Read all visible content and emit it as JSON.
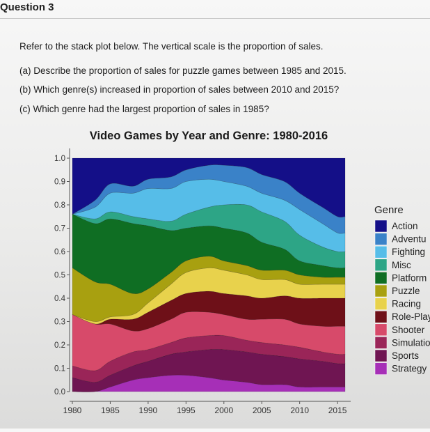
{
  "question": {
    "title": "Question 3",
    "lines": [
      "Refer to the stack plot below. The vertical scale is the proportion of sales.",
      "(a) Describe the proportion of sales for puzzle games between 1985 and 2015.",
      "(b) Which genre(s) increased in proportion of sales between 2010 and 2015?",
      "(c) Which genre had the largest proportion of sales in 1985?"
    ]
  },
  "chart_data": {
    "type": "area",
    "title": "Video Games by Year and Genre: 1980-2016",
    "xlabel": "",
    "ylabel": "",
    "x": [
      1980,
      1983,
      1985,
      1988,
      1990,
      1993,
      1995,
      1998,
      2000,
      2003,
      2005,
      2008,
      2010,
      2013,
      2015,
      2016
    ],
    "xticks": [
      "1980",
      "1985",
      "1990",
      "1995",
      "2000",
      "2005",
      "2010",
      "2015"
    ],
    "xlim": [
      1980,
      2016
    ],
    "yticks": [
      "0.0",
      "0.1",
      "0.2",
      "0.3",
      "0.4",
      "0.5",
      "0.6",
      "0.7",
      "0.8",
      "0.9",
      "1.0"
    ],
    "ylim": [
      0,
      1
    ],
    "legend_title": "Genre",
    "legend_position": "right",
    "series": [
      {
        "name": "Strategy",
        "color": "#a62fb7",
        "values": [
          0.0,
          0.0,
          0.02,
          0.05,
          0.06,
          0.07,
          0.07,
          0.06,
          0.05,
          0.04,
          0.03,
          0.03,
          0.02,
          0.02,
          0.02,
          0.02
        ]
      },
      {
        "name": "Sports",
        "color": "#6f1552",
        "values": [
          0.06,
          0.04,
          0.05,
          0.06,
          0.07,
          0.09,
          0.1,
          0.12,
          0.13,
          0.13,
          0.13,
          0.12,
          0.12,
          0.11,
          0.1,
          0.1
        ]
      },
      {
        "name": "Simulation",
        "color": "#9a2558",
        "values": [
          0.05,
          0.05,
          0.06,
          0.06,
          0.05,
          0.05,
          0.06,
          0.06,
          0.06,
          0.05,
          0.05,
          0.05,
          0.05,
          0.04,
          0.04,
          0.04
        ]
      },
      {
        "name": "Shooter",
        "color": "#d74a6a",
        "values": [
          0.22,
          0.2,
          0.16,
          0.09,
          0.09,
          0.1,
          0.11,
          0.1,
          0.09,
          0.09,
          0.1,
          0.11,
          0.1,
          0.11,
          0.12,
          0.12
        ]
      },
      {
        "name": "Role-Play",
        "color": "#6e1018",
        "values": [
          0.0,
          0.0,
          0.02,
          0.05,
          0.07,
          0.08,
          0.08,
          0.09,
          0.09,
          0.1,
          0.09,
          0.1,
          0.11,
          0.12,
          0.12,
          0.12
        ]
      },
      {
        "name": "Racing",
        "color": "#e8d24c",
        "values": [
          0.0,
          0.01,
          0.01,
          0.02,
          0.04,
          0.07,
          0.09,
          0.1,
          0.1,
          0.09,
          0.08,
          0.07,
          0.06,
          0.06,
          0.06,
          0.06
        ]
      },
      {
        "name": "Puzzle",
        "color": "#a8a010",
        "values": [
          0.2,
          0.17,
          0.14,
          0.09,
          0.06,
          0.05,
          0.05,
          0.05,
          0.04,
          0.04,
          0.04,
          0.04,
          0.04,
          0.03,
          0.03,
          0.03
        ]
      },
      {
        "name": "Platform",
        "color": "#0f6e23",
        "values": [
          0.23,
          0.25,
          0.28,
          0.3,
          0.27,
          0.18,
          0.14,
          0.13,
          0.14,
          0.14,
          0.12,
          0.09,
          0.06,
          0.05,
          0.04,
          0.04
        ]
      },
      {
        "name": "Misc",
        "color": "#2da586",
        "values": [
          0.0,
          0.02,
          0.03,
          0.03,
          0.03,
          0.04,
          0.06,
          0.08,
          0.1,
          0.12,
          0.13,
          0.12,
          0.11,
          0.08,
          0.07,
          0.07
        ]
      },
      {
        "name": "Fighting",
        "color": "#56bde8",
        "values": [
          0.0,
          0.05,
          0.08,
          0.1,
          0.13,
          0.14,
          0.14,
          0.12,
          0.1,
          0.08,
          0.08,
          0.09,
          0.11,
          0.1,
          0.08,
          0.08
        ]
      },
      {
        "name": "Adventure",
        "color": "#3a82c8",
        "values": [
          0.0,
          0.03,
          0.04,
          0.03,
          0.04,
          0.05,
          0.05,
          0.06,
          0.07,
          0.08,
          0.08,
          0.08,
          0.07,
          0.07,
          0.07,
          0.07
        ]
      },
      {
        "name": "Action",
        "color": "#140f88",
        "values": [
          0.24,
          0.18,
          0.11,
          0.12,
          0.09,
          0.08,
          0.05,
          0.03,
          0.03,
          0.04,
          0.07,
          0.1,
          0.15,
          0.21,
          0.25,
          0.25
        ]
      }
    ]
  },
  "legend_labels": [
    "Action",
    "Adventu",
    "Fighting",
    "Misc",
    "Platform",
    "Puzzle",
    "Racing",
    "Role-Play",
    "Shooter",
    "Simulation",
    "Sports",
    "Strategy"
  ]
}
